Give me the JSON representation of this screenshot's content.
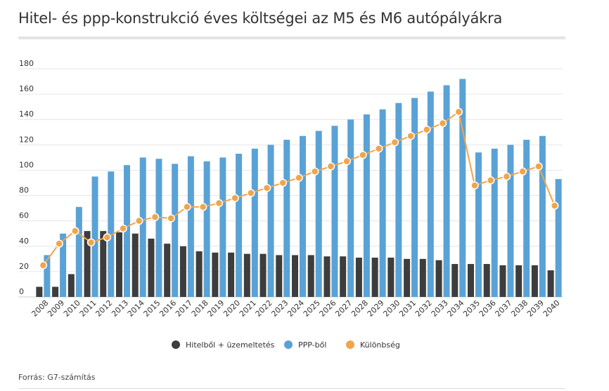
{
  "title": "Hitel- és ppp-konstrukció éves költségei az M5 és M6 autópályákra",
  "source": "Forrás: G7-számítás",
  "chart_data": {
    "type": "bar",
    "title": "Hitel- és ppp-konstrukció éves költségei az M5 és M6 autópályákra",
    "categories": [
      "2008",
      "2009",
      "2010",
      "2011",
      "2012",
      "2013",
      "2014",
      "2015",
      "2016",
      "2017",
      "2018",
      "2019",
      "2020",
      "2021",
      "2022",
      "2023",
      "2024",
      "2025",
      "2026",
      "2027",
      "2028",
      "2029",
      "2030",
      "2031",
      "2032",
      "2033",
      "2034",
      "2035",
      "2036",
      "2037",
      "2038",
      "2039",
      "2040"
    ],
    "ylim": [
      0,
      180
    ],
    "yticks": [
      0,
      20,
      40,
      60,
      80,
      100,
      120,
      140,
      160,
      180
    ],
    "grid": true,
    "legend_position": "bottom",
    "series": [
      {
        "name": "Hitelből + üzemeltetés",
        "type": "bar",
        "color": "#3d3d3d",
        "values": [
          8,
          8,
          18,
          52,
          52,
          51,
          50,
          46,
          42,
          40,
          36,
          35,
          35,
          34,
          34,
          33,
          33,
          33,
          32,
          32,
          31,
          31,
          31,
          30,
          30,
          29,
          26,
          26,
          26,
          25,
          25,
          25,
          21
        ]
      },
      {
        "name": "PPP-ből",
        "type": "bar",
        "color": "#5aa2d6",
        "values": [
          33,
          50,
          71,
          95,
          99,
          104,
          110,
          109,
          105,
          111,
          107,
          110,
          113,
          117,
          120,
          124,
          127,
          131,
          135,
          140,
          144,
          148,
          153,
          157,
          162,
          167,
          172,
          114,
          117,
          120,
          124,
          127,
          93
        ]
      },
      {
        "name": "Különbség",
        "type": "line",
        "color": "#f0a54c",
        "values": [
          25,
          42,
          52,
          43,
          47,
          54,
          60,
          63,
          62,
          71,
          71,
          74,
          78,
          82,
          86,
          90,
          94,
          99,
          103,
          107,
          112,
          117,
          122,
          127,
          132,
          137,
          146,
          88,
          92,
          95,
          99,
          103,
          72
        ]
      }
    ]
  }
}
